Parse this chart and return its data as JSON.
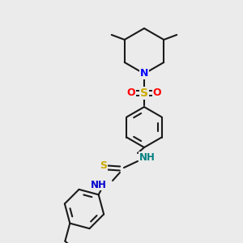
{
  "background_color": "#ebebeb",
  "bond_color": "#1a1a1a",
  "atom_colors": {
    "N": "#0000ff",
    "O": "#ff0000",
    "S_sulfonyl": "#ccaa00",
    "S_thio": "#ccaa00",
    "NH_upper": "#008080",
    "NH_lower": "#0000cd"
  },
  "figsize": [
    3.0,
    3.0
  ],
  "dpi": 100
}
